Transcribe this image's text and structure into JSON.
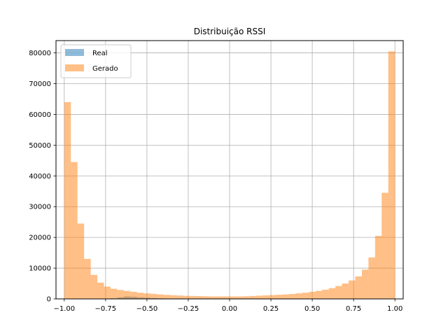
{
  "chart_data": {
    "type": "bar",
    "title": "Distribuição RSSI",
    "xlabel": "",
    "ylabel": "",
    "xlim": [
      -1.05,
      1.05
    ],
    "ylim": [
      0,
      84000
    ],
    "grid": true,
    "legend_position": "top-left",
    "x_ticks": [
      -1.0,
      -0.75,
      -0.5,
      -0.25,
      0.0,
      0.25,
      0.5,
      0.75,
      1.0
    ],
    "x_tick_labels": [
      "−1.00",
      "−0.75",
      "−0.50",
      "−0.25",
      "0.00",
      "0.25",
      "0.50",
      "0.75",
      "1.00"
    ],
    "y_ticks": [
      0,
      10000,
      20000,
      30000,
      40000,
      50000,
      60000,
      70000,
      80000
    ],
    "y_tick_labels": [
      "0",
      "10000",
      "20000",
      "30000",
      "40000",
      "50000",
      "60000",
      "70000",
      "80000"
    ],
    "bin_edges": [
      -1.0,
      -0.96,
      -0.92,
      -0.88,
      -0.84,
      -0.8,
      -0.76,
      -0.72,
      -0.68,
      -0.64,
      -0.6,
      -0.56,
      -0.52,
      -0.48,
      -0.44,
      -0.4,
      -0.36,
      -0.32,
      -0.28,
      -0.24,
      -0.2,
      -0.16,
      -0.12,
      -0.08,
      -0.04,
      0.0,
      0.04,
      0.08,
      0.12,
      0.16,
      0.2,
      0.24,
      0.28,
      0.32,
      0.36,
      0.4,
      0.44,
      0.48,
      0.52,
      0.56,
      0.6,
      0.64,
      0.68,
      0.72,
      0.76,
      0.8,
      0.84,
      0.88,
      0.92,
      0.96,
      1.0
    ],
    "series": [
      {
        "name": "Real",
        "color": "#1f77b4",
        "alpha": 0.5,
        "values": [
          0,
          0,
          0,
          0,
          0,
          0,
          0,
          200,
          500,
          800,
          700,
          500,
          400,
          300,
          200,
          150,
          100,
          100,
          100,
          80,
          80,
          80,
          80,
          80,
          80,
          80,
          80,
          80,
          80,
          80,
          80,
          80,
          80,
          80,
          80,
          80,
          80,
          80,
          80,
          80,
          80,
          80,
          80,
          80,
          80,
          80,
          80,
          80,
          80,
          80
        ]
      },
      {
        "name": "Gerado",
        "color": "#ff7f0e",
        "alpha": 0.5,
        "values": [
          64000,
          44500,
          24500,
          13000,
          7800,
          5300,
          4000,
          3300,
          2900,
          2600,
          2300,
          2000,
          1800,
          1650,
          1450,
          1300,
          1200,
          1100,
          1000,
          950,
          900,
          850,
          800,
          800,
          800,
          800,
          800,
          850,
          950,
          1050,
          1150,
          1250,
          1350,
          1450,
          1600,
          1800,
          2000,
          2300,
          2600,
          3000,
          3500,
          4200,
          5000,
          6000,
          7300,
          9500,
          13500,
          20500,
          34500,
          80500
        ]
      }
    ]
  }
}
